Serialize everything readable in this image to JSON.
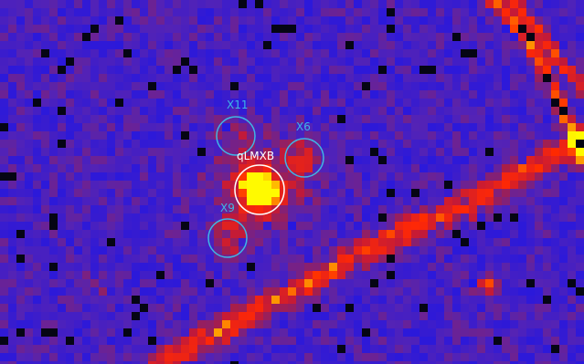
{
  "image": {
    "kind": "X-ray sky image (false-color)",
    "colormap": [
      "#000000",
      "#2b1bff",
      "#6a2bb0",
      "#d42222",
      "#ff1a00",
      "#ffee00"
    ]
  },
  "sources": [
    {
      "id": "X11",
      "label": "X11",
      "color": "#3fb6e6"
    },
    {
      "id": "X6",
      "label": "X6",
      "color": "#3fb6e6"
    },
    {
      "id": "qLMXB",
      "label": "qLMXB",
      "color": "#ffffff"
    },
    {
      "id": "X9",
      "label": "X9",
      "color": "#3fb6e6"
    }
  ]
}
